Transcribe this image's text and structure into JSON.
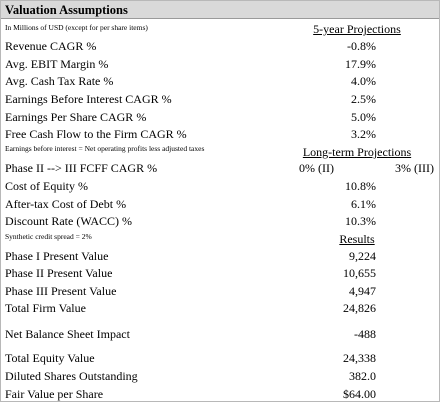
{
  "title": "Valuation Assumptions",
  "units_note": "In Millions of USD (except for per share items)",
  "projections_heading": "5-year Projections",
  "projections": [
    {
      "label": "Revenue CAGR %",
      "value": "-0.8%"
    },
    {
      "label": "Avg. EBIT Margin %",
      "value": "17.9%"
    },
    {
      "label": "Avg. Cash Tax Rate %",
      "value": "4.0%"
    },
    {
      "label": "Earnings Before Interest CAGR %",
      "value": "2.5%"
    },
    {
      "label": "Earnings Per Share CAGR %",
      "value": "5.0%"
    },
    {
      "label": "Free Cash Flow to the Firm CAGR %",
      "value": "3.2%"
    }
  ],
  "ebit_note": "Earnings before interest = Net operating profits less adjusted taxes",
  "long_term_heading": "Long-term Projections",
  "growth_row": {
    "label": "Phase II --> III FCFF CAGR %",
    "values": [
      "0% (II)",
      "3% (III)"
    ]
  },
  "long_term": [
    {
      "label": "Cost of Equity %",
      "value": "10.8%"
    },
    {
      "label": "After-tax Cost of Debt %",
      "value": "6.1%"
    },
    {
      "label": "Discount Rate (WACC) %",
      "value": "10.3%"
    }
  ],
  "spread_note": "Synthetic credit spread = 2%",
  "results_heading": "Results",
  "results": [
    {
      "label": "Phase I Present Value",
      "value": "9,224"
    },
    {
      "label": "Phase II Present Value",
      "value": "10,655"
    },
    {
      "label": "Phase III Present Value",
      "value": "4,947"
    },
    {
      "label": "Total Firm Value",
      "value": "24,826"
    },
    {
      "label": "Net Balance Sheet Impact",
      "value": "-488"
    },
    {
      "label": "Total Equity Value",
      "value": "24,338"
    },
    {
      "label": "Diluted Shares Outstanding",
      "value": "382.0"
    },
    {
      "label": "Fair Value per Share",
      "value": "$64.00"
    }
  ]
}
